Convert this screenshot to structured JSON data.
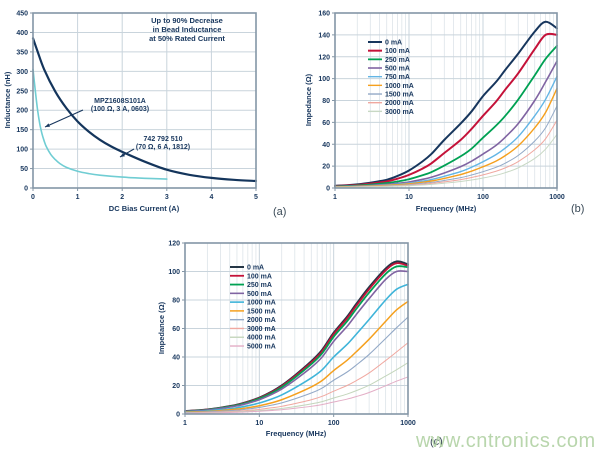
{
  "figure": {
    "captions": {
      "a": "(a)",
      "b": "(b)",
      "c": "(c)"
    },
    "watermark": "www.cntronics.com",
    "watermark_color": "#b9d6ad",
    "colors": {
      "axis_text": "#17365d",
      "grid_minor": "#dde4e9",
      "grid_major": "#c9d4dc",
      "frame": "#8496a6"
    }
  },
  "chart_data": [
    {
      "id": "a",
      "type": "line",
      "title": "",
      "xlabel": "DC Bias Current (A)",
      "ylabel": "Inductance (nH)",
      "xscale": "linear",
      "xlim": [
        0,
        5
      ],
      "ylim": [
        0,
        450
      ],
      "xticks": [
        0,
        1,
        2,
        3,
        4,
        5
      ],
      "yticks": [
        0,
        50,
        100,
        150,
        200,
        250,
        300,
        350,
        400,
        450
      ],
      "grid": true,
      "annotation": [
        "Up to 90% Decrease",
        "in Bead Inductance",
        "at 50% Rated Current"
      ],
      "series": [
        {
          "name": "742 792 510 (70 Ω, 6 A, 1812)",
          "color": "#14355c",
          "width": 2.2,
          "x": [
            0,
            0.1,
            0.25,
            0.5,
            0.75,
            1,
            1.25,
            1.5,
            1.75,
            2,
            2.5,
            3,
            3.5,
            4,
            4.5,
            5
          ],
          "y": [
            385,
            352,
            305,
            248,
            205,
            171,
            145,
            124,
            107,
            93,
            68,
            47,
            34,
            26,
            21,
            18
          ]
        },
        {
          "name": "MPZ1608S101A (100 Ω, 3 A, 0603)",
          "color": "#70cdd3",
          "width": 1.6,
          "x": [
            0,
            0.05,
            0.1,
            0.15,
            0.2,
            0.25,
            0.3,
            0.4,
            0.5,
            0.6,
            0.75,
            1,
            1.25,
            1.5,
            2,
            2.5,
            3
          ],
          "y": [
            305,
            252,
            203,
            166,
            140,
            121,
            106,
            86,
            73,
            63,
            53,
            43,
            37,
            33,
            28,
            25,
            23
          ]
        }
      ],
      "callouts": [
        {
          "lines": [
            "MPZ1608S101A",
            "(100 Ω, 3 A, 0603)"
          ]
        },
        {
          "lines": [
            "742 792 510",
            "(70 Ω, 6 A, 1812)"
          ]
        }
      ]
    },
    {
      "id": "b",
      "type": "line",
      "title": "",
      "xlabel": "Frequency (MHz)",
      "ylabel": "Impedance (Ω)",
      "xscale": "log",
      "xlim": [
        1,
        1000
      ],
      "ylim": [
        0,
        160
      ],
      "xticks": [
        1,
        10,
        100,
        1000
      ],
      "yticks": [
        0,
        20,
        40,
        60,
        80,
        100,
        120,
        140,
        160
      ],
      "grid": true,
      "legend_position": "upper-left-inside",
      "x": [
        1,
        1.5,
        2,
        3,
        5,
        7,
        10,
        15,
        20,
        30,
        50,
        70,
        100,
        150,
        200,
        300,
        500,
        700,
        1000
      ],
      "series": [
        {
          "name": "0 mA",
          "color": "#17365d",
          "width": 2,
          "y": [
            2,
            2.6,
            3.3,
            4.8,
            7.5,
            11,
            16,
            24,
            31,
            44,
            59,
            70,
            84,
            97,
            108,
            123,
            143,
            152,
            146
          ]
        },
        {
          "name": "100 mA",
          "color": "#c41239",
          "width": 2,
          "y": [
            1.8,
            2.3,
            2.8,
            4,
            6,
            8.5,
            12,
            17.5,
            22.5,
            32,
            44,
            54,
            66,
            79,
            90,
            105,
            127,
            140,
            140
          ]
        },
        {
          "name": "250 mA",
          "color": "#00a153",
          "width": 1.8,
          "y": [
            1.5,
            1.9,
            2.3,
            3.1,
            4.5,
            6,
            8,
            11.5,
            14.5,
            20.5,
            29,
            36,
            46,
            57,
            66,
            81,
            103,
            118,
            130
          ]
        },
        {
          "name": "500 mA",
          "color": "#8064a2",
          "width": 1.6,
          "y": [
            1.2,
            1.5,
            1.8,
            2.4,
            3.3,
            4.3,
            5.5,
            7.8,
            9.8,
            13.7,
            19.5,
            24.5,
            31,
            39,
            46.5,
            59,
            80,
            97,
            116
          ]
        },
        {
          "name": "750 mA",
          "color": "#62b5e5",
          "width": 1.4,
          "y": [
            1.1,
            1.3,
            1.5,
            2,
            2.8,
            3.5,
            4.5,
            6.2,
            7.7,
            10.7,
            15,
            19,
            24,
            30.5,
            36.5,
            47,
            66,
            81,
            102
          ]
        },
        {
          "name": "1000 mA",
          "color": "#f5a01e",
          "width": 1.4,
          "y": [
            1,
            1.2,
            1.4,
            1.8,
            2.4,
            3,
            3.8,
            5.2,
            6.4,
            8.8,
            12.3,
            15.4,
            19.4,
            24.6,
            29.6,
            38.6,
            55,
            69,
            91
          ]
        },
        {
          "name": "1500 mA",
          "color": "#93a9c7",
          "width": 1,
          "y": [
            0.9,
            1,
            1.2,
            1.5,
            2,
            2.5,
            3.1,
            4.2,
            5.1,
            6.9,
            9.5,
            11.9,
            14.9,
            18.9,
            22.7,
            29.8,
            43,
            55,
            75
          ]
        },
        {
          "name": "2000 mA",
          "color": "#f0a8a0",
          "width": 1,
          "y": [
            0.8,
            0.9,
            1.1,
            1.3,
            1.7,
            2.1,
            2.6,
            3.4,
            4.2,
            5.6,
            7.7,
            9.6,
            12,
            15.3,
            18.4,
            24.2,
            35,
            45,
            62
          ]
        },
        {
          "name": "3000 mA",
          "color": "#c8d8c4",
          "width": 1,
          "y": [
            0.7,
            0.8,
            0.9,
            1.1,
            1.4,
            1.7,
            2.1,
            2.7,
            3.3,
            4.4,
            5.9,
            7.3,
            9.1,
            11.6,
            14,
            18.5,
            27,
            35.5,
            49
          ]
        }
      ]
    },
    {
      "id": "c",
      "type": "line",
      "title": "",
      "xlabel": "Frequency (MHz)",
      "ylabel": "Impedance (Ω)",
      "xscale": "log",
      "xlim": [
        1,
        1000
      ],
      "ylim": [
        0,
        120
      ],
      "xticks": [
        1,
        10,
        100,
        1000
      ],
      "yticks": [
        0,
        20,
        40,
        60,
        80,
        100,
        120
      ],
      "grid": true,
      "legend_position": "upper-left-inside",
      "x": [
        1,
        1.5,
        2,
        3,
        5,
        7,
        10,
        15,
        20,
        30,
        50,
        70,
        100,
        150,
        200,
        300,
        500,
        700,
        1000
      ],
      "series": [
        {
          "name": "0 mA",
          "color": "#253646",
          "width": 2,
          "y": [
            2,
            2.6,
            3.2,
            4.4,
            6.5,
            8.6,
            11.5,
            16,
            20,
            27,
            37,
            45,
            57,
            68,
            77,
            89,
            102,
            107,
            105
          ]
        },
        {
          "name": "100 mA",
          "color": "#c41239",
          "width": 1.8,
          "y": [
            2,
            2.5,
            3.1,
            4.3,
            6.3,
            8.4,
            11.2,
            15.6,
            19.5,
            26.4,
            36.2,
            44,
            56,
            66.8,
            75.7,
            87.6,
            100.7,
            105.8,
            104
          ]
        },
        {
          "name": "250 mA",
          "color": "#00a153",
          "width": 1.8,
          "y": [
            1.9,
            2.4,
            3,
            4.2,
            6.1,
            8.1,
            10.8,
            15,
            18.8,
            25.5,
            35,
            42.6,
            54.2,
            64.8,
            73.5,
            85.2,
            98.3,
            103.5,
            103
          ]
        },
        {
          "name": "500 mA",
          "color": "#8064a2",
          "width": 1.6,
          "y": [
            1.8,
            2.3,
            2.8,
            3.9,
            5.7,
            7.5,
            10,
            14,
            17.5,
            23.8,
            32.7,
            40,
            51,
            61.2,
            69.6,
            81,
            94.4,
            100,
            100
          ]
        },
        {
          "name": "1000 mA",
          "color": "#3fb4d9",
          "width": 1.6,
          "y": [
            1.5,
            1.8,
            2.2,
            3,
            4.4,
            5.8,
            7.7,
            10.7,
            13.4,
            18.3,
            25.3,
            31,
            40,
            48.6,
            55.8,
            66.3,
            80,
            87.5,
            91
          ]
        },
        {
          "name": "1500 mA",
          "color": "#f5a01e",
          "width": 1.5,
          "y": [
            1.2,
            1.5,
            1.8,
            2.4,
            3.4,
            4.4,
            5.8,
            8,
            10,
            13.7,
            19,
            23.5,
            30.5,
            37.5,
            43.5,
            52.5,
            65,
            73,
            79
          ]
        },
        {
          "name": "2000 mA",
          "color": "#93a9c7",
          "width": 1.1,
          "y": [
            1,
            1.2,
            1.5,
            2,
            2.7,
            3.5,
            4.6,
            6.3,
            7.8,
            10.6,
            14.7,
            18.2,
            23.7,
            29.3,
            34.2,
            41.8,
            53,
            60.5,
            68
          ]
        },
        {
          "name": "3000 mA",
          "color": "#f0a8a0",
          "width": 1,
          "y": [
            0.8,
            0.95,
            1.1,
            1.45,
            2,
            2.5,
            3.2,
            4.4,
            5.4,
            7.3,
            10,
            12.4,
            16,
            19.9,
            23.3,
            28.8,
            37.5,
            43.5,
            50
          ]
        },
        {
          "name": "4000 mA",
          "color": "#c4d6bc",
          "width": 1,
          "y": [
            0.6,
            0.72,
            0.85,
            1.1,
            1.5,
            1.9,
            2.4,
            3.2,
            3.9,
            5.2,
            7.1,
            8.7,
            11.2,
            13.9,
            16.3,
            20.2,
            26.6,
            31,
            36
          ]
        },
        {
          "name": "5000 mA",
          "color": "#e3aec6",
          "width": 1,
          "y": [
            0.5,
            0.6,
            0.7,
            0.9,
            1.2,
            1.5,
            1.9,
            2.5,
            3,
            4,
            5.4,
            6.6,
            8.4,
            10.4,
            12.2,
            15.1,
            19.8,
            23,
            26
          ]
        }
      ]
    }
  ]
}
